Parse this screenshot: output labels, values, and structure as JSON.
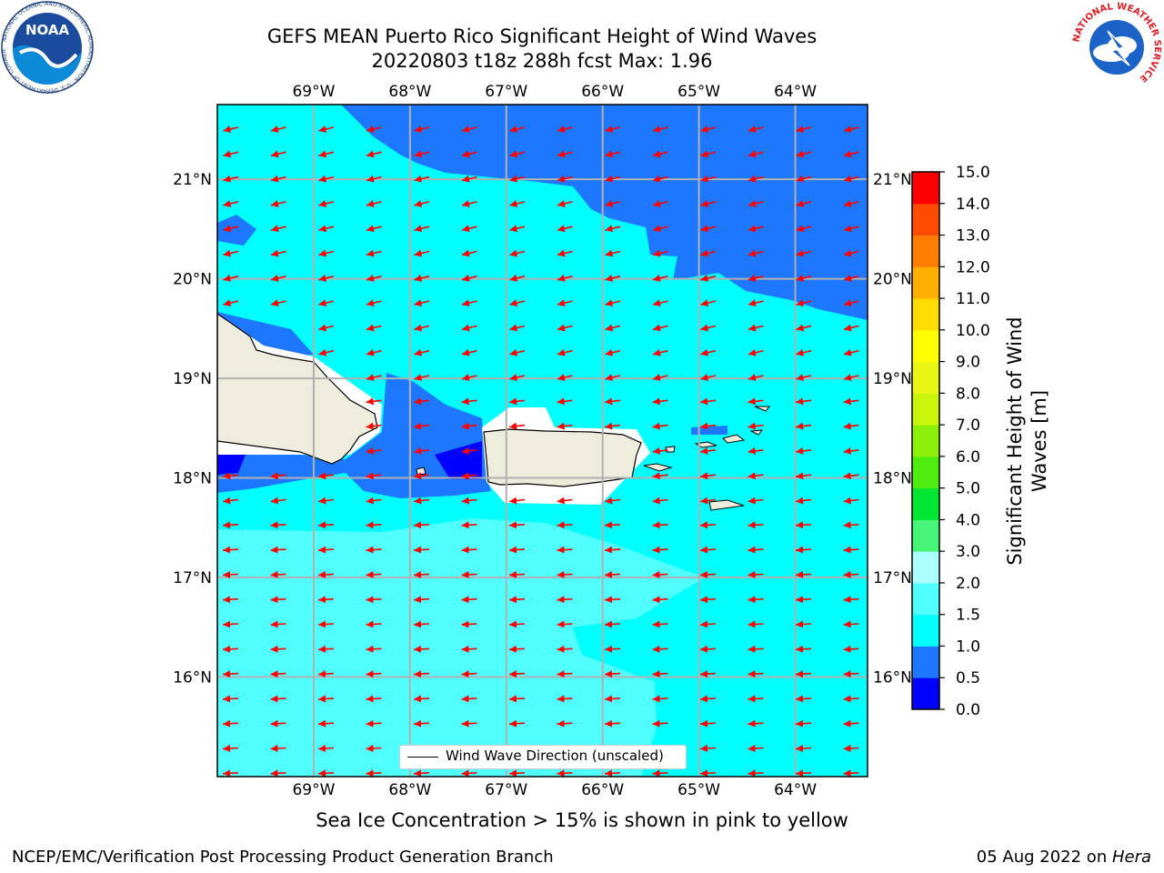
{
  "title": {
    "line1": "GEFS MEAN Puerto Rico Significant Height of Wind Waves",
    "line2": "20220803 t18z 288h fcst   Max: 1.96"
  },
  "logos": {
    "left": {
      "name": "noaa-logo",
      "text": "NOAA",
      "ring_text": "NATIONAL OCEANIC AND ATMOSPHERIC ADMINISTRATION · U.S. DEPARTMENT OF COMMERCE"
    },
    "right": {
      "name": "nws-logo",
      "ring_text": "NATIONAL WEATHER SERVICE"
    }
  },
  "map": {
    "lon_range": [
      -70.0,
      -63.25
    ],
    "lat_range": [
      15.0,
      21.75
    ],
    "lon_ticks": [
      "69°W",
      "68°W",
      "67°W",
      "66°W",
      "65°W",
      "64°W"
    ],
    "lat_ticks": [
      "21°N",
      "20°N",
      "19°N",
      "18°N",
      "17°N",
      "16°N"
    ],
    "grid": true,
    "legend": {
      "label": "Wind Wave Direction (unscaled)"
    },
    "arrow_color": "#ff0000",
    "land_color": "#eeecdc"
  },
  "colorbar": {
    "label_line1": "Significant Height of Wind",
    "label_line2": "Waves [m]",
    "ticks": [
      "0.0",
      "0.5",
      "1.0",
      "1.5",
      "2.0",
      "3.0",
      "4.0",
      "5.0",
      "6.0",
      "7.0",
      "8.0",
      "9.0",
      "10.0",
      "11.0",
      "12.0",
      "13.0",
      "14.0",
      "15.0"
    ],
    "colors": [
      "#0000ff",
      "#1e78ff",
      "#00ffff",
      "#50ffff",
      "#aaffff",
      "#46f578",
      "#00e632",
      "#50eb0f",
      "#8cf00a",
      "#c8f50a",
      "#ebf514",
      "#ffff00",
      "#ffdc00",
      "#ffaf00",
      "#ff7d00",
      "#ff4b00",
      "#ff0000"
    ]
  },
  "caption": "Sea Ice Concentration > 15% is shown in pink to yellow",
  "footer": {
    "left": "NCEP/EMC/Verification Post Processing Product Generation Branch",
    "right_prefix": "05 Aug 2022 on ",
    "right_host": "Hera"
  }
}
